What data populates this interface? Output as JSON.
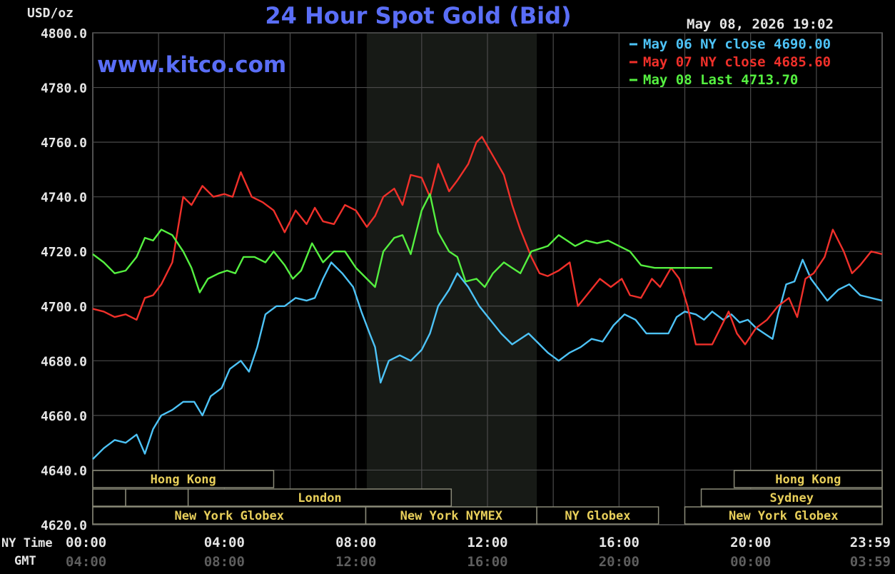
{
  "chart_data": {
    "type": "line",
    "title": "24 Hour Spot Gold (Bid)",
    "unit_label": "USD/oz",
    "watermark": "www.kitco.com",
    "timestamp": "May 08, 2026 19:02",
    "ylim": [
      4620,
      4800
    ],
    "y_ticks": [
      "4800.0",
      "4780.0",
      "4760.0",
      "4740.0",
      "4720.0",
      "4700.0",
      "4680.0",
      "4660.0",
      "4640.0",
      "4620.0"
    ],
    "x_label_ny": "NY Time",
    "x_label_gmt": "GMT",
    "x_ticks_ny": [
      "00:00",
      "04:00",
      "08:00",
      "12:00",
      "16:00",
      "20:00",
      "23:59"
    ],
    "x_ticks_gmt": [
      "04:00",
      "08:00",
      "12:00",
      "16:00",
      "20:00",
      "00:00",
      "03:59"
    ],
    "x_hours": [
      0,
      4,
      8,
      12,
      16,
      20,
      24
    ],
    "nymex_shading_hours": [
      8.33,
      13.5
    ],
    "legend": [
      {
        "label": "May 06 NY close 4690.00",
        "color": "#4dc3f7"
      },
      {
        "label": "May 07 NY close 4685.60",
        "color": "#f0302a"
      },
      {
        "label": "May 08 Last 4713.70",
        "color": "#55f040"
      }
    ],
    "sessions": [
      {
        "label": "Hong Kong",
        "start": 0.0,
        "end": 5.5,
        "row": 0
      },
      {
        "label": "Hong Kong",
        "start": 19.5,
        "end": 24.0,
        "row": 0
      },
      {
        "label": "",
        "start": 0.0,
        "end": 1.0,
        "row": 1
      },
      {
        "label": "",
        "start": 1.0,
        "end": 2.9,
        "row": 1
      },
      {
        "label": "London",
        "start": 2.9,
        "end": 10.9,
        "row": 1
      },
      {
        "label": "Sydney",
        "start": 18.5,
        "end": 24.0,
        "row": 1
      },
      {
        "label": "New York Globex",
        "start": 0.0,
        "end": 8.3,
        "row": 2
      },
      {
        "label": "New York NYMEX",
        "start": 8.3,
        "end": 13.5,
        "row": 2
      },
      {
        "label": "NY Globex",
        "start": 13.5,
        "end": 17.2,
        "row": 2
      },
      {
        "label": "New York Globex",
        "start": 18.0,
        "end": 24.0,
        "row": 2
      }
    ],
    "series": [
      {
        "color": "#4dc3f7",
        "points": [
          [
            0,
            4644
          ],
          [
            0.4,
            4648
          ],
          [
            0.8,
            4651
          ],
          [
            1.2,
            4650
          ],
          [
            1.6,
            4653
          ],
          [
            1.9,
            4646
          ],
          [
            2.2,
            4655
          ],
          [
            2.5,
            4660
          ],
          [
            2.9,
            4662
          ],
          [
            3.3,
            4665
          ],
          [
            3.7,
            4665
          ],
          [
            4.0,
            4660
          ],
          [
            4.3,
            4667
          ],
          [
            4.7,
            4670
          ],
          [
            5.0,
            4677
          ],
          [
            5.4,
            4680
          ],
          [
            5.7,
            4676
          ],
          [
            6.0,
            4685
          ],
          [
            6.3,
            4697
          ],
          [
            6.7,
            4700
          ],
          [
            7.0,
            4700
          ],
          [
            7.4,
            4703
          ],
          [
            7.8,
            4702
          ],
          [
            8.1,
            4703
          ],
          [
            8.4,
            4710
          ],
          [
            8.7,
            4716
          ],
          [
            9.1,
            4712
          ],
          [
            9.5,
            4707
          ],
          [
            9.8,
            4698
          ],
          [
            10.1,
            4690
          ],
          [
            10.3,
            4685
          ],
          [
            10.5,
            4672
          ],
          [
            10.8,
            4680
          ],
          [
            11.2,
            4682
          ],
          [
            11.6,
            4680
          ],
          [
            12.0,
            4684
          ],
          [
            12.3,
            4690
          ],
          [
            12.6,
            4700
          ],
          [
            13.0,
            4706
          ],
          [
            13.3,
            4712
          ],
          [
            13.7,
            4707
          ],
          [
            14.1,
            4700
          ],
          [
            14.5,
            4695
          ],
          [
            14.9,
            4690
          ],
          [
            15.3,
            4686
          ],
          [
            15.6,
            4688
          ],
          [
            15.9,
            4690
          ],
          [
            16.3,
            4686
          ],
          [
            16.6,
            4683
          ],
          [
            17.0,
            4680
          ],
          [
            17.4,
            4683
          ],
          [
            17.8,
            4685
          ],
          [
            18.2,
            4688
          ],
          [
            18.6,
            4687
          ],
          [
            19.0,
            4693
          ],
          [
            19.4,
            4697
          ],
          [
            19.8,
            4695
          ],
          [
            20.2,
            4690
          ],
          [
            20.5,
            4690
          ],
          [
            20.8,
            4690
          ],
          [
            21.0,
            4690
          ],
          [
            21.3,
            4696
          ],
          [
            21.6,
            4698
          ],
          [
            22.0,
            4697
          ],
          [
            22.3,
            4695
          ],
          [
            22.6,
            4698
          ],
          [
            23.0,
            4695
          ],
          [
            23.3,
            4697
          ],
          [
            23.6,
            4694
          ],
          [
            23.9,
            4695
          ],
          [
            24.2,
            4692
          ],
          [
            24.5,
            4690
          ],
          [
            24.8,
            4688
          ],
          [
            25.0,
            4697
          ],
          [
            25.3,
            4708
          ],
          [
            25.6,
            4709
          ],
          [
            25.9,
            4717
          ],
          [
            26.2,
            4710
          ],
          [
            26.5,
            4706
          ],
          [
            26.8,
            4702
          ],
          [
            27.2,
            4706
          ],
          [
            27.6,
            4708
          ],
          [
            28.0,
            4704
          ],
          [
            28.4,
            4703
          ],
          [
            28.8,
            4702
          ]
        ]
      },
      {
        "color": "#f0302a",
        "points": [
          [
            0,
            4699
          ],
          [
            0.4,
            4698
          ],
          [
            0.8,
            4696
          ],
          [
            1.2,
            4697
          ],
          [
            1.6,
            4695
          ],
          [
            1.9,
            4703
          ],
          [
            2.2,
            4704
          ],
          [
            2.5,
            4708
          ],
          [
            2.9,
            4716
          ],
          [
            3.3,
            4740
          ],
          [
            3.6,
            4737
          ],
          [
            4.0,
            4744
          ],
          [
            4.4,
            4740
          ],
          [
            4.8,
            4741
          ],
          [
            5.1,
            4740
          ],
          [
            5.4,
            4749
          ],
          [
            5.8,
            4740
          ],
          [
            6.2,
            4738
          ],
          [
            6.6,
            4735
          ],
          [
            7.0,
            4727
          ],
          [
            7.4,
            4735
          ],
          [
            7.8,
            4730
          ],
          [
            8.1,
            4736
          ],
          [
            8.4,
            4731
          ],
          [
            8.8,
            4730
          ],
          [
            9.2,
            4737
          ],
          [
            9.6,
            4735
          ],
          [
            10.0,
            4729
          ],
          [
            10.3,
            4733
          ],
          [
            10.6,
            4740
          ],
          [
            11.0,
            4743
          ],
          [
            11.3,
            4737
          ],
          [
            11.6,
            4748
          ],
          [
            12.0,
            4747
          ],
          [
            12.3,
            4740
          ],
          [
            12.6,
            4752
          ],
          [
            13.0,
            4742
          ],
          [
            13.3,
            4746
          ],
          [
            13.7,
            4752
          ],
          [
            14.0,
            4760
          ],
          [
            14.2,
            4762
          ],
          [
            14.6,
            4755
          ],
          [
            15.0,
            4748
          ],
          [
            15.3,
            4737
          ],
          [
            15.6,
            4728
          ],
          [
            16.0,
            4718
          ],
          [
            16.3,
            4712
          ],
          [
            16.6,
            4711
          ],
          [
            17.0,
            4713
          ],
          [
            17.4,
            4716
          ],
          [
            17.7,
            4700
          ],
          [
            18.1,
            4705
          ],
          [
            18.5,
            4710
          ],
          [
            18.9,
            4707
          ],
          [
            19.3,
            4710
          ],
          [
            19.6,
            4704
          ],
          [
            20.0,
            4703
          ],
          [
            20.4,
            4710
          ],
          [
            20.7,
            4707
          ],
          [
            21.1,
            4714
          ],
          [
            21.4,
            4710
          ],
          [
            21.7,
            4700
          ],
          [
            22.0,
            4686
          ],
          [
            22.3,
            4686
          ],
          [
            22.6,
            4686
          ],
          [
            22.9,
            4692
          ],
          [
            23.2,
            4698
          ],
          [
            23.5,
            4690
          ],
          [
            23.8,
            4686
          ],
          [
            24.2,
            4692
          ],
          [
            24.6,
            4695
          ],
          [
            25.0,
            4700
          ],
          [
            25.4,
            4703
          ],
          [
            25.7,
            4696
          ],
          [
            26.0,
            4710
          ],
          [
            26.3,
            4712
          ],
          [
            26.7,
            4718
          ],
          [
            27.0,
            4728
          ],
          [
            27.4,
            4720
          ],
          [
            27.7,
            4712
          ],
          [
            28.0,
            4715
          ],
          [
            28.4,
            4720
          ],
          [
            28.8,
            4719
          ]
        ]
      },
      {
        "color": "#55f040",
        "points": [
          [
            0,
            4719
          ],
          [
            0.4,
            4716
          ],
          [
            0.8,
            4712
          ],
          [
            1.2,
            4713
          ],
          [
            1.6,
            4718
          ],
          [
            1.9,
            4725
          ],
          [
            2.2,
            4724
          ],
          [
            2.5,
            4728
          ],
          [
            2.9,
            4726
          ],
          [
            3.3,
            4720
          ],
          [
            3.6,
            4714
          ],
          [
            3.9,
            4705
          ],
          [
            4.2,
            4710
          ],
          [
            4.6,
            4712
          ],
          [
            4.9,
            4713
          ],
          [
            5.2,
            4712
          ],
          [
            5.5,
            4718
          ],
          [
            5.9,
            4718
          ],
          [
            6.3,
            4716
          ],
          [
            6.6,
            4720
          ],
          [
            7.0,
            4715
          ],
          [
            7.3,
            4710
          ],
          [
            7.6,
            4713
          ],
          [
            8.0,
            4723
          ],
          [
            8.4,
            4716
          ],
          [
            8.8,
            4720
          ],
          [
            9.2,
            4720
          ],
          [
            9.6,
            4714
          ],
          [
            10.0,
            4710
          ],
          [
            10.3,
            4707
          ],
          [
            10.6,
            4720
          ],
          [
            11.0,
            4725
          ],
          [
            11.3,
            4726
          ],
          [
            11.6,
            4719
          ],
          [
            12.0,
            4735
          ],
          [
            12.3,
            4741
          ],
          [
            12.6,
            4727
          ],
          [
            13.0,
            4720
          ],
          [
            13.3,
            4718
          ],
          [
            13.6,
            4709
          ],
          [
            14.0,
            4710
          ],
          [
            14.3,
            4707
          ],
          [
            14.6,
            4712
          ],
          [
            15.0,
            4716
          ],
          [
            15.3,
            4714
          ],
          [
            15.6,
            4712
          ],
          [
            16.0,
            4720
          ],
          [
            16.3,
            4721
          ],
          [
            16.6,
            4722
          ],
          [
            17.0,
            4726
          ],
          [
            17.3,
            4724
          ],
          [
            17.6,
            4722
          ],
          [
            18.0,
            4724
          ],
          [
            18.4,
            4723
          ],
          [
            18.8,
            4724
          ],
          [
            19.2,
            4722
          ],
          [
            19.6,
            4720
          ],
          [
            20.0,
            4715
          ],
          [
            20.5,
            4714
          ],
          [
            21.0,
            4714
          ],
          [
            21.5,
            4714
          ],
          [
            22.0,
            4714
          ],
          [
            22.6,
            4714
          ]
        ]
      }
    ]
  }
}
